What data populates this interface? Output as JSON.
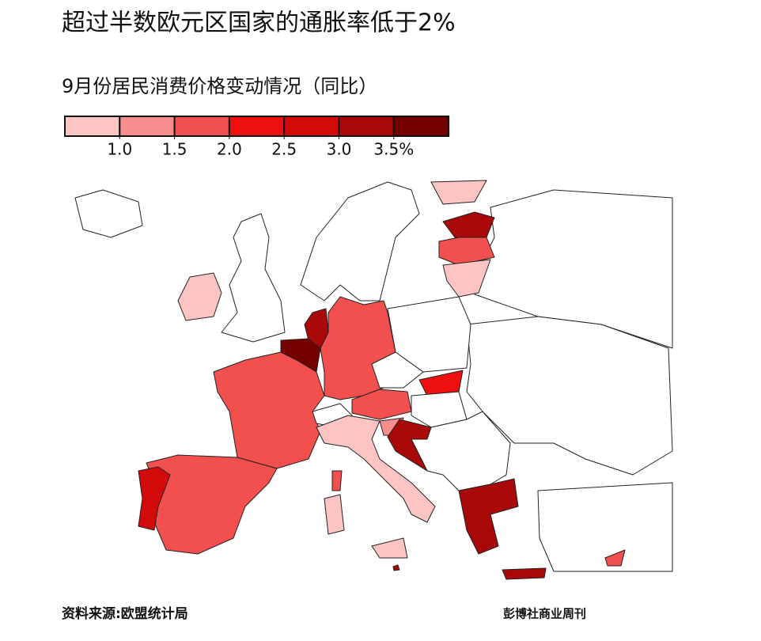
{
  "title": "超过半数欧元区国家的通胀率低于2%",
  "subtitle": "9月份居民消费价格变动情况（同比）",
  "legend": {
    "colors": [
      "#fdc4c4",
      "#f88d8d",
      "#f24f4f",
      "#ee0f0f",
      "#d20a0a",
      "#a80808",
      "#740000"
    ],
    "ticks": [
      {
        "value": 1,
        "label": "1.0"
      },
      {
        "value": 1.5,
        "label": "1.5"
      },
      {
        "value": 2,
        "label": "2.0"
      },
      {
        "value": 2.5,
        "label": "2.5"
      },
      {
        "value": 3,
        "label": "3.0"
      },
      {
        "value": 3.5,
        "label": "3.5%"
      }
    ]
  },
  "source": "资料来源:欧盟统计局",
  "credit": "彭博社商业周刊"
}
